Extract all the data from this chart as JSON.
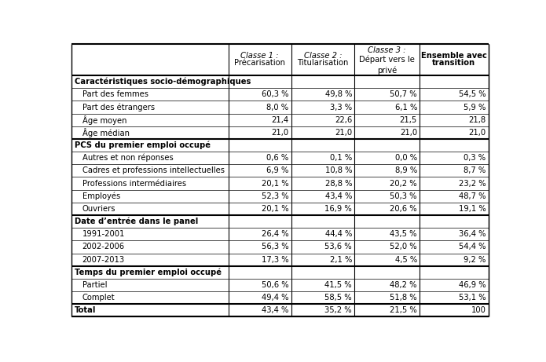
{
  "sections": [
    {
      "header": "Caractéristiques socio-démographiques",
      "rows": [
        [
          "Part des femmes",
          "60,3 %",
          "49,8 %",
          "50,7 %",
          "54,5 %"
        ],
        [
          "Part des étrangers",
          "8,0 %",
          "3,3 %",
          "6,1 %",
          "5,9 %"
        ],
        [
          "Âge moyen",
          "21,4",
          "22,6",
          "21,5",
          "21,8"
        ],
        [
          "Âge médian",
          "21,0",
          "21,0",
          "21,0",
          "21,0"
        ]
      ]
    },
    {
      "header": "PCS du premier emploi occupé",
      "rows": [
        [
          "Autres et non réponses",
          "0,6 %",
          "0,1 %",
          "0,0 %",
          "0,3 %"
        ],
        [
          "Cadres et professions intellectuelles",
          "6,9 %",
          "10,8 %",
          "8,9 %",
          "8,7 %"
        ],
        [
          "Professions intermédiaires",
          "20,1 %",
          "28,8 %",
          "20,2 %",
          "23,2 %"
        ],
        [
          "Employés",
          "52,3 %",
          "43,4 %",
          "50,3 %",
          "48,7 %"
        ],
        [
          "Ouvriers",
          "20,1 %",
          "16,9 %",
          "20,6 %",
          "19,1 %"
        ]
      ]
    },
    {
      "header": "Date d’entrée dans le panel",
      "rows": [
        [
          "1991-2001",
          "26,4 %",
          "44,4 %",
          "43,5 %",
          "36,4 %"
        ],
        [
          "2002-2006",
          "56,3 %",
          "53,6 %",
          "52,0 %",
          "54,4 %"
        ],
        [
          "2007-2013",
          "17,3 %",
          "2,1 %",
          "4,5 %",
          "9,2 %"
        ]
      ]
    },
    {
      "header": "Temps du premier emploi occupé",
      "rows": [
        [
          "Partiel",
          "50,6 %",
          "41,5 %",
          "48,2 %",
          "46,9 %"
        ],
        [
          "Complet",
          "49,4 %",
          "58,5 %",
          "51,8 %",
          "53,1 %"
        ]
      ]
    }
  ],
  "total_row": [
    "Total",
    "43,4 %",
    "35,2 %",
    "21,5 %",
    "100"
  ],
  "bg_color": "#ffffff",
  "col_header_line1": [
    "Classe 1 :",
    "Classe 2 :",
    "Classe 3 :",
    "Ensemble avec"
  ],
  "col_header_line2": [
    "Précarisation",
    "Titularisation",
    "Départ vers le",
    "transition"
  ],
  "col_header_line3": [
    "",
    "",
    "privé",
    ""
  ],
  "col_header_italic": [
    true,
    true,
    true,
    false
  ],
  "col_header_bold_last": true
}
